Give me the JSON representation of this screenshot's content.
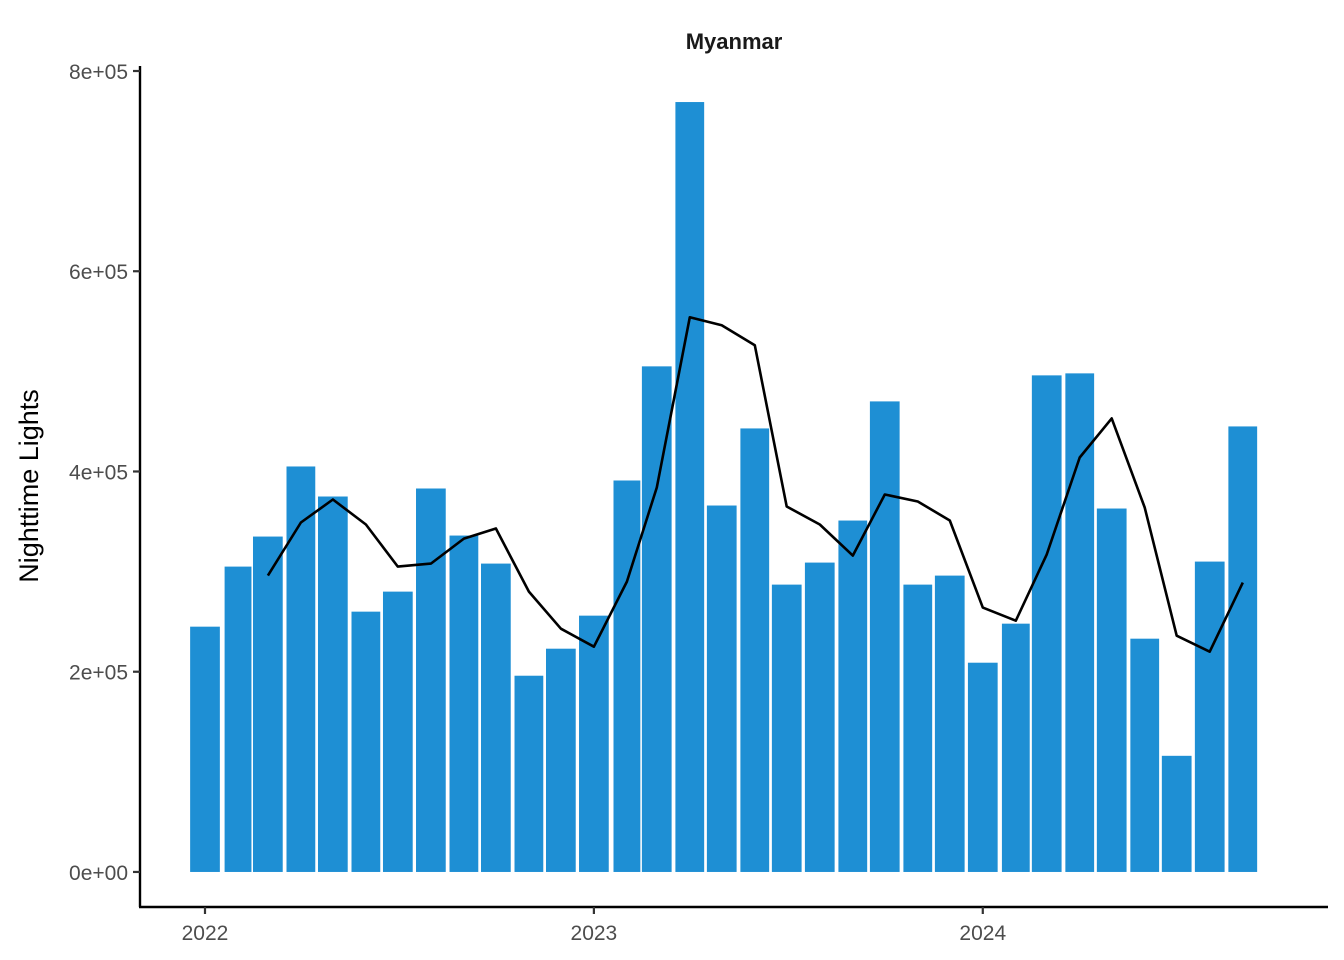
{
  "chart_data": {
    "type": "bar",
    "title": "Myanmar",
    "xlabel": "",
    "ylabel": "Nighttime Lights",
    "ylim": [
      -35000,
      805000
    ],
    "yticks": [
      0,
      200000,
      400000,
      600000,
      800000
    ],
    "ytick_labels": [
      "0e+00",
      "2e+05",
      "4e+05",
      "6e+05",
      "8e+05"
    ],
    "xlim": [
      "2021-11-01",
      "2024-11-20"
    ],
    "xticks": [
      "2022-01-01",
      "2023-01-01",
      "2024-01-01"
    ],
    "xtick_labels": [
      "2022",
      "2023",
      "2024"
    ],
    "bar_color": "#1e8fd4",
    "line_color": "#000000",
    "grid": false,
    "x": [
      "2022-01-01",
      "2022-02-01",
      "2022-03-01",
      "2022-04-01",
      "2022-05-01",
      "2022-06-01",
      "2022-07-01",
      "2022-08-01",
      "2022-09-01",
      "2022-10-01",
      "2022-11-01",
      "2022-12-01",
      "2023-01-01",
      "2023-02-01",
      "2023-03-01",
      "2023-04-01",
      "2023-05-01",
      "2023-06-01",
      "2023-07-01",
      "2023-08-01",
      "2023-09-01",
      "2023-10-01",
      "2023-11-01",
      "2023-12-01",
      "2024-01-01",
      "2024-02-01",
      "2024-03-01",
      "2024-04-01",
      "2024-05-01",
      "2024-06-01",
      "2024-07-01",
      "2024-08-01",
      "2024-09-01"
    ],
    "series": [
      {
        "type": "bar",
        "values": [
          245000,
          305000,
          335000,
          405000,
          375000,
          260000,
          280000,
          383000,
          336000,
          308000,
          196000,
          223000,
          256000,
          391000,
          505000,
          769000,
          366000,
          443000,
          287000,
          309000,
          351000,
          470000,
          287000,
          296000,
          209000,
          248000,
          496000,
          498000,
          363000,
          233000,
          116000,
          310000,
          445000
        ]
      },
      {
        "type": "line",
        "values": [
          null,
          null,
          296000,
          349000,
          372000,
          347000,
          305000,
          308000,
          333000,
          343000,
          280000,
          243000,
          225000,
          290000,
          384000,
          554000,
          546000,
          526000,
          365000,
          347000,
          316000,
          377000,
          370000,
          351000,
          264000,
          251000,
          317000,
          414000,
          453000,
          364000,
          236000,
          220000,
          289000
        ]
      }
    ]
  }
}
